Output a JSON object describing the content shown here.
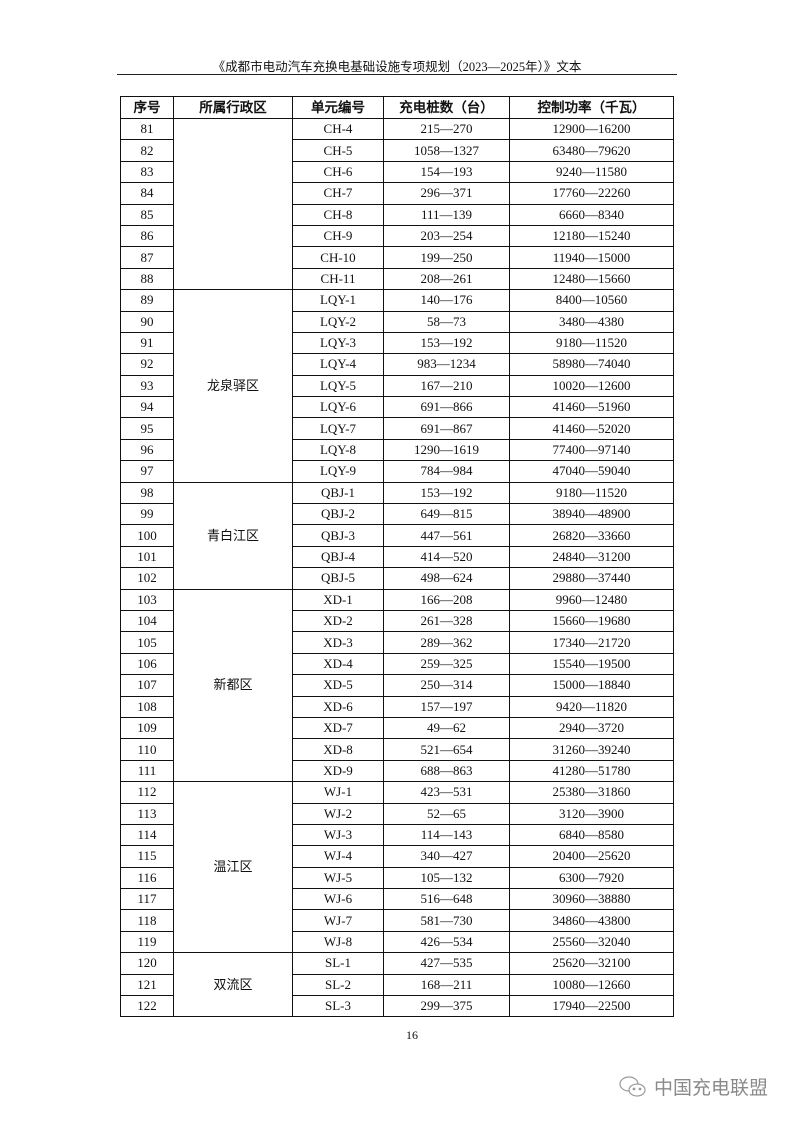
{
  "header": {
    "title": "《成都市电动汽车充换电基础设施专项规划（2023—2025年）》文本"
  },
  "table": {
    "columns": [
      "序号",
      "所属行政区",
      "单元编号",
      "充电桩数（台）",
      "控制功率（千瓦）"
    ],
    "groups": [
      {
        "district": "",
        "rows": [
          [
            "81",
            "CH-4",
            "215—270",
            "12900—16200"
          ],
          [
            "82",
            "CH-5",
            "1058—1327",
            "63480—79620"
          ],
          [
            "83",
            "CH-6",
            "154—193",
            "9240—11580"
          ],
          [
            "84",
            "CH-7",
            "296—371",
            "17760—22260"
          ],
          [
            "85",
            "CH-8",
            "111—139",
            "6660—8340"
          ],
          [
            "86",
            "CH-9",
            "203—254",
            "12180—15240"
          ],
          [
            "87",
            "CH-10",
            "199—250",
            "11940—15000"
          ],
          [
            "88",
            "CH-11",
            "208—261",
            "12480—15660"
          ]
        ]
      },
      {
        "district": "龙泉驿区",
        "rows": [
          [
            "89",
            "LQY-1",
            "140—176",
            "8400—10560"
          ],
          [
            "90",
            "LQY-2",
            "58—73",
            "3480—4380"
          ],
          [
            "91",
            "LQY-3",
            "153—192",
            "9180—11520"
          ],
          [
            "92",
            "LQY-4",
            "983—1234",
            "58980—74040"
          ],
          [
            "93",
            "LQY-5",
            "167—210",
            "10020—12600"
          ],
          [
            "94",
            "LQY-6",
            "691—866",
            "41460—51960"
          ],
          [
            "95",
            "LQY-7",
            "691—867",
            "41460—52020"
          ],
          [
            "96",
            "LQY-8",
            "1290—1619",
            "77400—97140"
          ],
          [
            "97",
            "LQY-9",
            "784—984",
            "47040—59040"
          ]
        ]
      },
      {
        "district": "青白江区",
        "rows": [
          [
            "98",
            "QBJ-1",
            "153—192",
            "9180—11520"
          ],
          [
            "99",
            "QBJ-2",
            "649—815",
            "38940—48900"
          ],
          [
            "100",
            "QBJ-3",
            "447—561",
            "26820—33660"
          ],
          [
            "101",
            "QBJ-4",
            "414—520",
            "24840—31200"
          ],
          [
            "102",
            "QBJ-5",
            "498—624",
            "29880—37440"
          ]
        ]
      },
      {
        "district": "新都区",
        "rows": [
          [
            "103",
            "XD-1",
            "166—208",
            "9960—12480"
          ],
          [
            "104",
            "XD-2",
            "261—328",
            "15660—19680"
          ],
          [
            "105",
            "XD-3",
            "289—362",
            "17340—21720"
          ],
          [
            "106",
            "XD-4",
            "259—325",
            "15540—19500"
          ],
          [
            "107",
            "XD-5",
            "250—314",
            "15000—18840"
          ],
          [
            "108",
            "XD-6",
            "157—197",
            "9420—11820"
          ],
          [
            "109",
            "XD-7",
            "49—62",
            "2940—3720"
          ],
          [
            "110",
            "XD-8",
            "521—654",
            "31260—39240"
          ],
          [
            "111",
            "XD-9",
            "688—863",
            "41280—51780"
          ]
        ]
      },
      {
        "district": "温江区",
        "rows": [
          [
            "112",
            "WJ-1",
            "423—531",
            "25380—31860"
          ],
          [
            "113",
            "WJ-2",
            "52—65",
            "3120—3900"
          ],
          [
            "114",
            "WJ-3",
            "114—143",
            "6840—8580"
          ],
          [
            "115",
            "WJ-4",
            "340—427",
            "20400—25620"
          ],
          [
            "116",
            "WJ-5",
            "105—132",
            "6300—7920"
          ],
          [
            "117",
            "WJ-6",
            "516—648",
            "30960—38880"
          ],
          [
            "118",
            "WJ-7",
            "581—730",
            "34860—43800"
          ],
          [
            "119",
            "WJ-8",
            "426—534",
            "25560—32040"
          ]
        ]
      },
      {
        "district": "双流区",
        "rows": [
          [
            "120",
            "SL-1",
            "427—535",
            "25620—32100"
          ],
          [
            "121",
            "SL-2",
            "168—211",
            "10080—12660"
          ],
          [
            "122",
            "SL-3",
            "299—375",
            "17940—22500"
          ]
        ]
      }
    ]
  },
  "footer": {
    "page_number": "16"
  },
  "watermark": {
    "text": "中国充电联盟",
    "icon": "wechat-icon"
  }
}
